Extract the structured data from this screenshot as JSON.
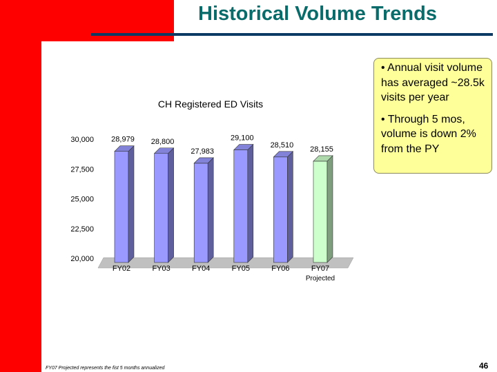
{
  "slide": {
    "title": "Historical Volume Trends",
    "footnote": "FY07 Projected represents the fist 5 months annualized",
    "page_number": "46"
  },
  "callout": {
    "bullets": [
      "• Annual visit volume has averaged ~28.5k visits per year",
      "• Through 5 mos, volume is down 2% from the PY"
    ]
  },
  "chart_data": {
    "type": "bar",
    "title": "CH Registered ED  Visits",
    "categories": [
      "FY02",
      "FY03",
      "FY04",
      "FY05",
      "FY06",
      "FY07"
    ],
    "category_sublabels": [
      "",
      "",
      "",
      "",
      "",
      "Projected"
    ],
    "values": [
      28979,
      28800,
      27983,
      29100,
      28510,
      28155
    ],
    "value_labels": [
      "28,979",
      "28,800",
      "27,983",
      "29,100",
      "28,510",
      "28,155"
    ],
    "ylim": [
      20000,
      30000
    ],
    "yticks": [
      20000,
      22500,
      25000,
      27500,
      30000
    ],
    "ytick_labels": [
      "20,000",
      "22,500",
      "25,000",
      "27,500",
      "30,000"
    ],
    "grid": false,
    "bar_colors": [
      "#9999ff",
      "#9999ff",
      "#9999ff",
      "#9999ff",
      "#9999ff",
      "#ccffcc"
    ]
  }
}
